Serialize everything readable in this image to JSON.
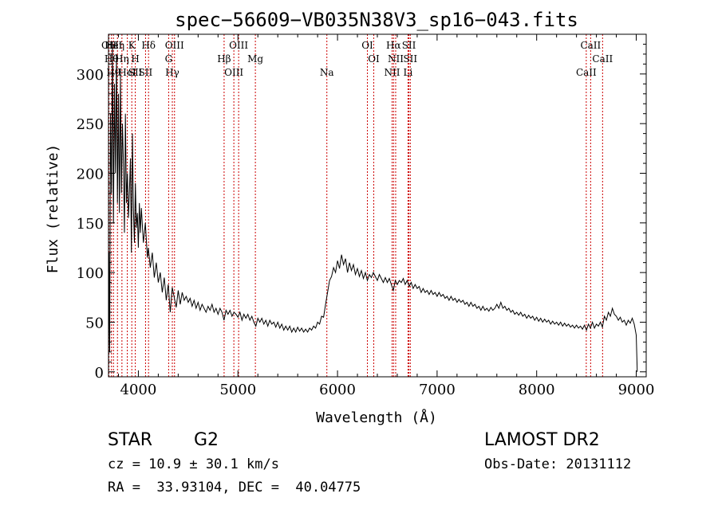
{
  "chart_data": {
    "type": "line",
    "title": "spec−56609−VB035N38V3_sp16−043.fits",
    "xlabel": "Wavelength (Å)",
    "ylabel": "Flux (relative)",
    "xlim": [
      3700,
      9100
    ],
    "ylim": [
      -5,
      340
    ],
    "xticks": [
      4000,
      5000,
      6000,
      7000,
      8000,
      9000
    ],
    "yticks": [
      0,
      50,
      100,
      150,
      200,
      250,
      300
    ],
    "grid": false,
    "line_color": "#000000",
    "marker_color": "#cc0000",
    "series": [
      {
        "values": [
          [
            3700,
            0
          ],
          [
            3705,
            120
          ],
          [
            3712,
            20
          ],
          [
            3720,
            260
          ],
          [
            3730,
            180
          ],
          [
            3740,
            330
          ],
          [
            3750,
            150
          ],
          [
            3760,
            290
          ],
          [
            3770,
            200
          ],
          [
            3780,
            320
          ],
          [
            3790,
            170
          ],
          [
            3800,
            280
          ],
          [
            3810,
            160
          ],
          [
            3820,
            300
          ],
          [
            3830,
            180
          ],
          [
            3840,
            250
          ],
          [
            3850,
            210
          ],
          [
            3860,
            140
          ],
          [
            3870,
            260
          ],
          [
            3880,
            170
          ],
          [
            3890,
            200
          ],
          [
            3900,
            155
          ],
          [
            3910,
            180
          ],
          [
            3920,
            215
          ],
          [
            3930,
            120
          ],
          [
            3940,
            240
          ],
          [
            3950,
            165
          ],
          [
            3960,
            130
          ],
          [
            3970,
            190
          ],
          [
            3980,
            145
          ],
          [
            3990,
            160
          ],
          [
            4000,
            125
          ],
          [
            4010,
            170
          ],
          [
            4020,
            140
          ],
          [
            4030,
            165
          ],
          [
            4050,
            130
          ],
          [
            4070,
            150
          ],
          [
            4090,
            115
          ],
          [
            4100,
            125
          ],
          [
            4120,
            105
          ],
          [
            4140,
            120
          ],
          [
            4160,
            95
          ],
          [
            4180,
            110
          ],
          [
            4200,
            90
          ],
          [
            4220,
            100
          ],
          [
            4240,
            80
          ],
          [
            4260,
            95
          ],
          [
            4280,
            72
          ],
          [
            4300,
            88
          ],
          [
            4320,
            60
          ],
          [
            4340,
            85
          ],
          [
            4360,
            75
          ],
          [
            4380,
            65
          ],
          [
            4400,
            82
          ],
          [
            4420,
            68
          ],
          [
            4440,
            80
          ],
          [
            4460,
            72
          ],
          [
            4480,
            76
          ],
          [
            4500,
            70
          ],
          [
            4520,
            74
          ],
          [
            4540,
            66
          ],
          [
            4560,
            72
          ],
          [
            4580,
            64
          ],
          [
            4600,
            70
          ],
          [
            4620,
            62
          ],
          [
            4640,
            68
          ],
          [
            4660,
            64
          ],
          [
            4680,
            60
          ],
          [
            4700,
            66
          ],
          [
            4720,
            62
          ],
          [
            4740,
            68
          ],
          [
            4760,
            60
          ],
          [
            4780,
            64
          ],
          [
            4800,
            58
          ],
          [
            4820,
            64
          ],
          [
            4840,
            60
          ],
          [
            4860,
            52
          ],
          [
            4880,
            62
          ],
          [
            4900,
            58
          ],
          [
            4920,
            62
          ],
          [
            4940,
            56
          ],
          [
            4960,
            60
          ],
          [
            4980,
            58
          ],
          [
            5000,
            55
          ],
          [
            5020,
            60
          ],
          [
            5040,
            52
          ],
          [
            5060,
            58
          ],
          [
            5080,
            54
          ],
          [
            5100,
            58
          ],
          [
            5120,
            52
          ],
          [
            5140,
            56
          ],
          [
            5160,
            50
          ],
          [
            5180,
            46
          ],
          [
            5200,
            54
          ],
          [
            5220,
            50
          ],
          [
            5240,
            54
          ],
          [
            5260,
            48
          ],
          [
            5280,
            52
          ],
          [
            5300,
            46
          ],
          [
            5320,
            52
          ],
          [
            5340,
            48
          ],
          [
            5360,
            50
          ],
          [
            5380,
            45
          ],
          [
            5400,
            50
          ],
          [
            5420,
            44
          ],
          [
            5440,
            48
          ],
          [
            5460,
            42
          ],
          [
            5480,
            46
          ],
          [
            5500,
            42
          ],
          [
            5520,
            46
          ],
          [
            5540,
            40
          ],
          [
            5560,
            44
          ],
          [
            5580,
            40
          ],
          [
            5600,
            45
          ],
          [
            5620,
            41
          ],
          [
            5640,
            44
          ],
          [
            5660,
            40
          ],
          [
            5680,
            43
          ],
          [
            5700,
            40
          ],
          [
            5720,
            44
          ],
          [
            5740,
            42
          ],
          [
            5760,
            46
          ],
          [
            5780,
            44
          ],
          [
            5800,
            50
          ],
          [
            5820,
            48
          ],
          [
            5840,
            56
          ],
          [
            5860,
            55
          ],
          [
            5880,
            68
          ],
          [
            5900,
            80
          ],
          [
            5920,
            92
          ],
          [
            5940,
            96
          ],
          [
            5960,
            105
          ],
          [
            5980,
            100
          ],
          [
            6000,
            112
          ],
          [
            6020,
            104
          ],
          [
            6040,
            118
          ],
          [
            6060,
            108
          ],
          [
            6080,
            114
          ],
          [
            6100,
            100
          ],
          [
            6120,
            110
          ],
          [
            6140,
            102
          ],
          [
            6160,
            108
          ],
          [
            6180,
            98
          ],
          [
            6200,
            104
          ],
          [
            6220,
            96
          ],
          [
            6240,
            102
          ],
          [
            6260,
            94
          ],
          [
            6280,
            100
          ],
          [
            6300,
            92
          ],
          [
            6320,
            98
          ],
          [
            6340,
            95
          ],
          [
            6360,
            100
          ],
          [
            6380,
            96
          ],
          [
            6400,
            92
          ],
          [
            6420,
            98
          ],
          [
            6440,
            94
          ],
          [
            6460,
            90
          ],
          [
            6480,
            95
          ],
          [
            6500,
            90
          ],
          [
            6520,
            94
          ],
          [
            6540,
            88
          ],
          [
            6560,
            82
          ],
          [
            6580,
            92
          ],
          [
            6600,
            88
          ],
          [
            6620,
            92
          ],
          [
            6640,
            90
          ],
          [
            6660,
            94
          ],
          [
            6680,
            88
          ],
          [
            6700,
            92
          ],
          [
            6720,
            86
          ],
          [
            6740,
            90
          ],
          [
            6760,
            84
          ],
          [
            6780,
            88
          ],
          [
            6800,
            84
          ],
          [
            6820,
            86
          ],
          [
            6840,
            80
          ],
          [
            6860,
            84
          ],
          [
            6880,
            80
          ],
          [
            6900,
            82
          ],
          [
            6920,
            78
          ],
          [
            6940,
            82
          ],
          [
            6960,
            78
          ],
          [
            6980,
            80
          ],
          [
            7000,
            76
          ],
          [
            7020,
            80
          ],
          [
            7040,
            76
          ],
          [
            7060,
            78
          ],
          [
            7080,
            74
          ],
          [
            7100,
            76
          ],
          [
            7120,
            72
          ],
          [
            7140,
            76
          ],
          [
            7160,
            72
          ],
          [
            7180,
            74
          ],
          [
            7200,
            70
          ],
          [
            7220,
            73
          ],
          [
            7240,
            70
          ],
          [
            7260,
            72
          ],
          [
            7280,
            68
          ],
          [
            7300,
            70
          ],
          [
            7320,
            66
          ],
          [
            7340,
            70
          ],
          [
            7360,
            66
          ],
          [
            7380,
            68
          ],
          [
            7400,
            64
          ],
          [
            7420,
            66
          ],
          [
            7440,
            62
          ],
          [
            7460,
            66
          ],
          [
            7480,
            62
          ],
          [
            7500,
            64
          ],
          [
            7520,
            61
          ],
          [
            7540,
            65
          ],
          [
            7560,
            62
          ],
          [
            7580,
            64
          ],
          [
            7600,
            68
          ],
          [
            7620,
            64
          ],
          [
            7640,
            70
          ],
          [
            7660,
            64
          ],
          [
            7680,
            66
          ],
          [
            7700,
            62
          ],
          [
            7720,
            64
          ],
          [
            7740,
            60
          ],
          [
            7760,
            62
          ],
          [
            7780,
            58
          ],
          [
            7800,
            60
          ],
          [
            7820,
            57
          ],
          [
            7840,
            60
          ],
          [
            7860,
            56
          ],
          [
            7880,
            58
          ],
          [
            7900,
            54
          ],
          [
            7920,
            57
          ],
          [
            7940,
            54
          ],
          [
            7960,
            56
          ],
          [
            7980,
            52
          ],
          [
            8000,
            55
          ],
          [
            8020,
            51
          ],
          [
            8040,
            54
          ],
          [
            8060,
            50
          ],
          [
            8080,
            53
          ],
          [
            8100,
            50
          ],
          [
            8120,
            52
          ],
          [
            8140,
            48
          ],
          [
            8160,
            51
          ],
          [
            8180,
            48
          ],
          [
            8200,
            50
          ],
          [
            8220,
            47
          ],
          [
            8240,
            50
          ],
          [
            8260,
            46
          ],
          [
            8280,
            49
          ],
          [
            8300,
            46
          ],
          [
            8320,
            48
          ],
          [
            8340,
            45
          ],
          [
            8360,
            47
          ],
          [
            8380,
            44
          ],
          [
            8400,
            47
          ],
          [
            8420,
            44
          ],
          [
            8440,
            46
          ],
          [
            8460,
            43
          ],
          [
            8480,
            47
          ],
          [
            8500,
            42
          ],
          [
            8520,
            48
          ],
          [
            8540,
            44
          ],
          [
            8560,
            50
          ],
          [
            8580,
            44
          ],
          [
            8600,
            48
          ],
          [
            8620,
            46
          ],
          [
            8640,
            50
          ],
          [
            8660,
            45
          ],
          [
            8680,
            56
          ],
          [
            8700,
            52
          ],
          [
            8720,
            60
          ],
          [
            8740,
            56
          ],
          [
            8760,
            64
          ],
          [
            8780,
            58
          ],
          [
            8800,
            56
          ],
          [
            8820,
            52
          ],
          [
            8840,
            55
          ],
          [
            8860,
            50
          ],
          [
            8880,
            52
          ],
          [
            8900,
            47
          ],
          [
            8920,
            52
          ],
          [
            8940,
            49
          ],
          [
            8960,
            54
          ],
          [
            8980,
            48
          ],
          [
            9000,
            37
          ],
          [
            9010,
            0
          ]
        ]
      }
    ],
    "line_markers": [
      {
        "x": 3705,
        "labels": [
          "OII"
        ]
      },
      {
        "x": 3730,
        "labels": [
          "Hθ"
        ]
      },
      {
        "x": 3750,
        "labels": [
          "Hθ",
          "HeI"
        ]
      },
      {
        "x": 3790,
        "labels": [
          "Hη"
        ]
      },
      {
        "x": 3835,
        "labels": [
          "Hη"
        ]
      },
      {
        "x": 3889,
        "labels": [
          "HeI"
        ]
      },
      {
        "x": 3934,
        "labels": [
          "K"
        ]
      },
      {
        "x": 3969,
        "labels": [
          "H",
          "SII"
        ]
      },
      {
        "x": 4072,
        "labels": [
          "SII"
        ]
      },
      {
        "x": 4102,
        "labels": [
          "Hδ"
        ]
      },
      {
        "x": 4304,
        "labels": [
          "G"
        ]
      },
      {
        "x": 4341,
        "labels": [
          "Hγ"
        ]
      },
      {
        "x": 4363,
        "labels": [
          "OIII"
        ]
      },
      {
        "x": 4861,
        "labels": [
          "Hβ"
        ]
      },
      {
        "x": 4959,
        "labels": [
          "OIII"
        ]
      },
      {
        "x": 5007,
        "labels": [
          "OIII"
        ]
      },
      {
        "x": 5175,
        "labels": [
          "Mg"
        ]
      },
      {
        "x": 5893,
        "labels": [
          "Na"
        ]
      },
      {
        "x": 6300,
        "labels": [
          "OI"
        ]
      },
      {
        "x": 6364,
        "labels": [
          "OI"
        ]
      },
      {
        "x": 6548,
        "labels": [
          "NII"
        ]
      },
      {
        "x": 6563,
        "labels": [
          "Hα"
        ]
      },
      {
        "x": 6584,
        "labels": [
          "NII"
        ]
      },
      {
        "x": 6708,
        "labels": [
          "Li"
        ]
      },
      {
        "x": 6717,
        "labels": [
          "SII"
        ]
      },
      {
        "x": 6731,
        "labels": [
          "SII"
        ]
      },
      {
        "x": 8498,
        "labels": [
          "CaII"
        ]
      },
      {
        "x": 8542,
        "labels": [
          "CaII"
        ]
      },
      {
        "x": 8662,
        "labels": [
          "CaII"
        ]
      }
    ]
  },
  "info": {
    "object_type": "STAR",
    "subclass": "G2",
    "survey": "LAMOST DR2",
    "redshift": "cz = 10.9 ± 30.1 km/s",
    "obs_date": "Obs-Date: 20131112",
    "coords": "RA =  33.93104, DEC =  40.04775"
  }
}
